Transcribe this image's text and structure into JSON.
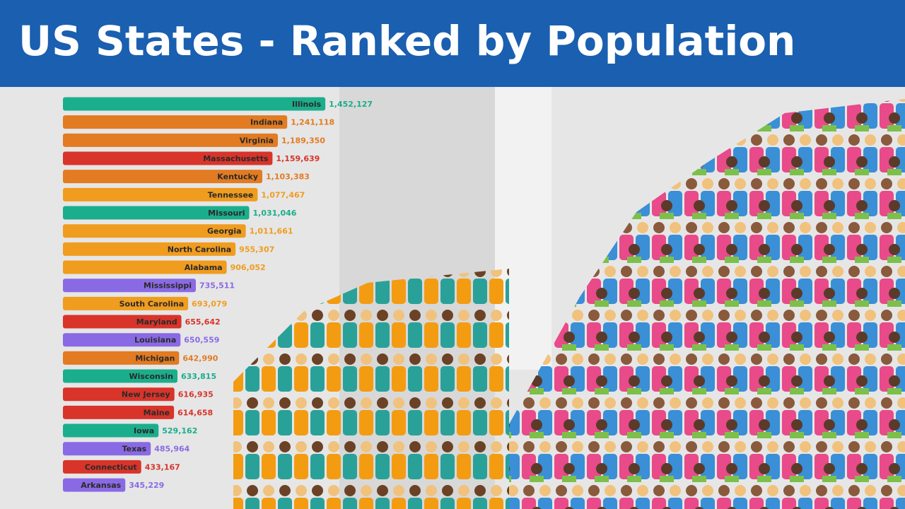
{
  "chart_data": {
    "type": "bar",
    "orientation": "horizontal",
    "title": "US States - Ranked by Population",
    "categories": [
      "Illinois",
      "Indiana",
      "Virginia",
      "Massachusetts",
      "Kentucky",
      "Tennessee",
      "Missouri",
      "Georgia",
      "North Carolina",
      "Alabama",
      "Mississippi",
      "South Carolina",
      "Maryland",
      "Louisiana",
      "Michigan",
      "Wisconsin",
      "New Jersey",
      "Maine",
      "Iowa",
      "Texas",
      "Connecticut",
      "Arkansas"
    ],
    "values": [
      1452127,
      1241118,
      1189350,
      1159639,
      1103383,
      1077467,
      1031046,
      1011661,
      955307,
      906052,
      735511,
      693079,
      655642,
      650559,
      642990,
      633815,
      616935,
      614658,
      529162,
      485964,
      433167,
      345229
    ],
    "value_labels": [
      "1,452,127",
      "1,241,118",
      "1,189,350",
      "1,159,639",
      "1,103,383",
      "1,077,467",
      "1,031,046",
      "1,011,661",
      "955,307",
      "906,052",
      "735,511",
      "693,079",
      "655,642",
      "650,559",
      "642,990",
      "633,815",
      "616,935",
      "614,658",
      "529,162",
      "485,964",
      "433,167",
      "345,229"
    ],
    "colors": [
      "#1bae8c",
      "#e27b22",
      "#e27b22",
      "#d8342a",
      "#e27b22",
      "#f09c1f",
      "#1bae8c",
      "#f09c1f",
      "#f09c1f",
      "#f09c1f",
      "#8a6ae4",
      "#f09c1f",
      "#d8342a",
      "#8a6ae4",
      "#e27b22",
      "#1bae8c",
      "#d8342a",
      "#d8342a",
      "#1bae8c",
      "#8a6ae4",
      "#d8342a",
      "#8a6ae4"
    ],
    "xlim": [
      0,
      2500000
    ]
  }
}
